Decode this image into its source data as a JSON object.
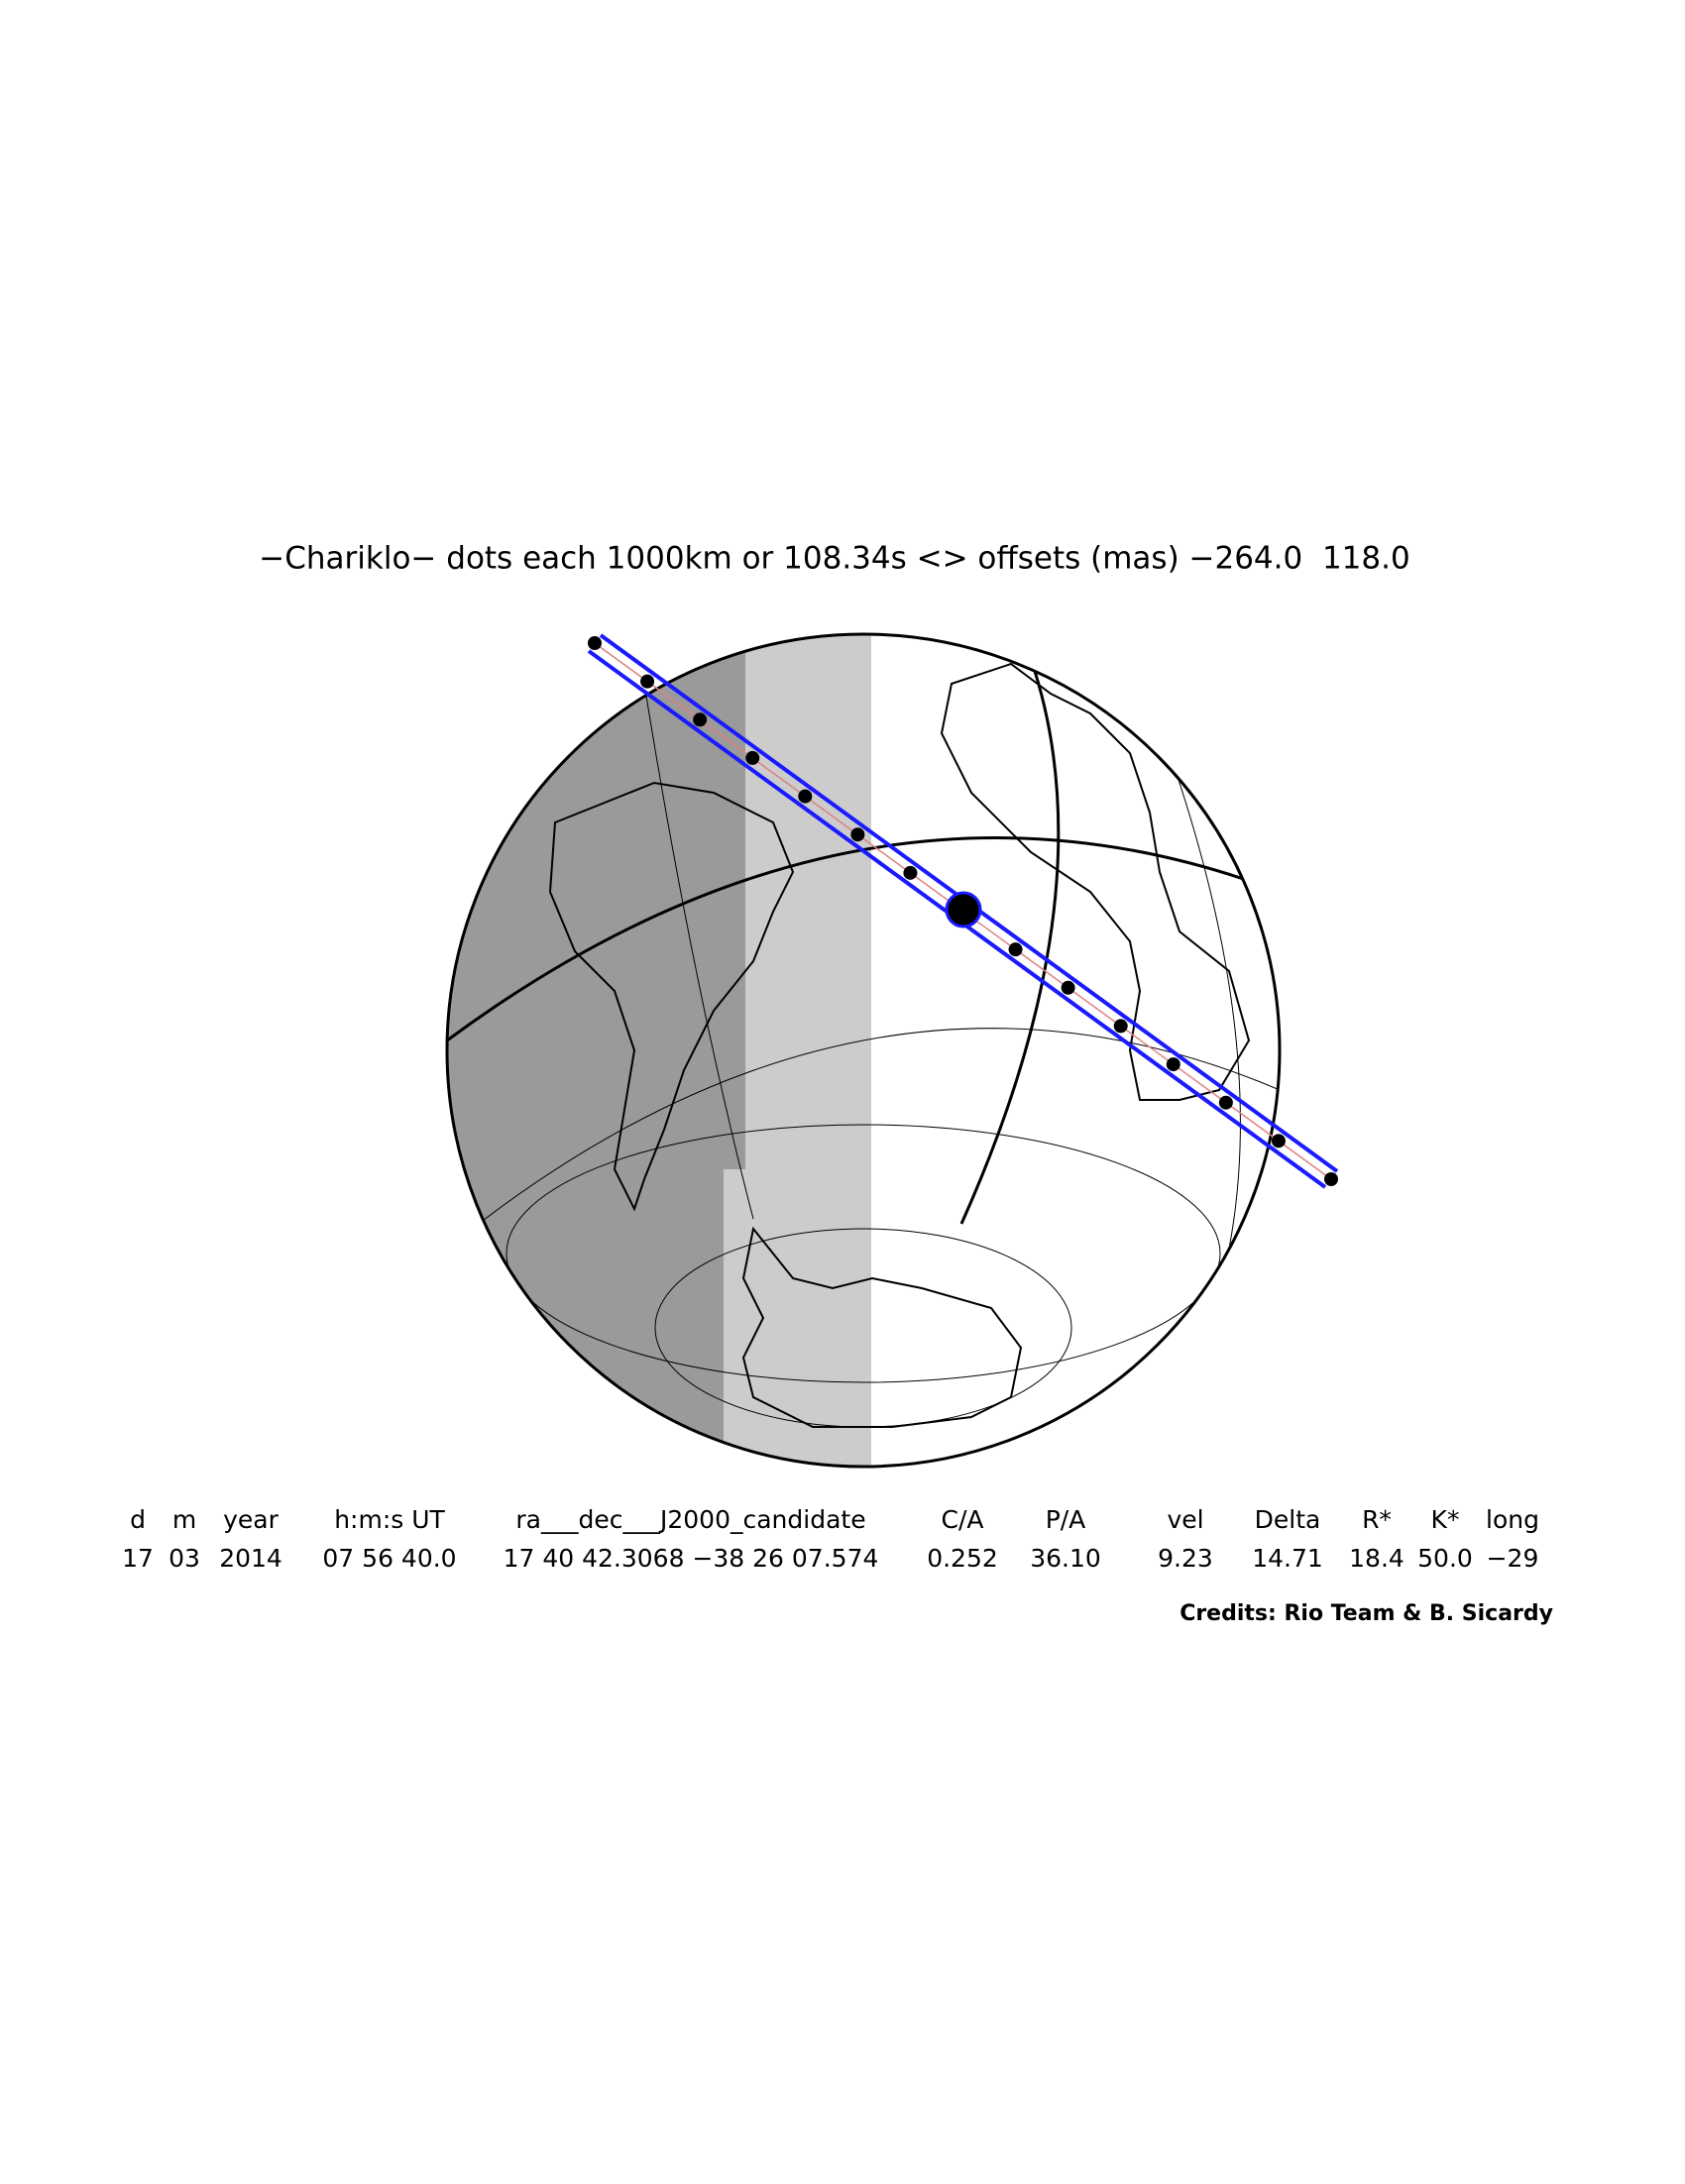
{
  "title": "−Chariklo− dots each 1000km or 108.34s <> offsets (mas) −264.0  118.0",
  "table": {
    "header": [
      "d",
      "m",
      "year",
      "h:m:s UT",
      "ra___dec___J2000_candidate",
      "C/A",
      "P/A",
      "vel",
      "Delta",
      "R*",
      "K*",
      "long"
    ],
    "row": [
      "17",
      "03",
      "2014",
      "07 56 40.0",
      "17 40 42.3068 −38 26 07.574",
      "0.252",
      "36.10",
      "9.23",
      "14.71",
      "18.4",
      "50.0",
      "−29"
    ]
  },
  "credits": "Credits: Rio Team & B. Sicardy"
}
